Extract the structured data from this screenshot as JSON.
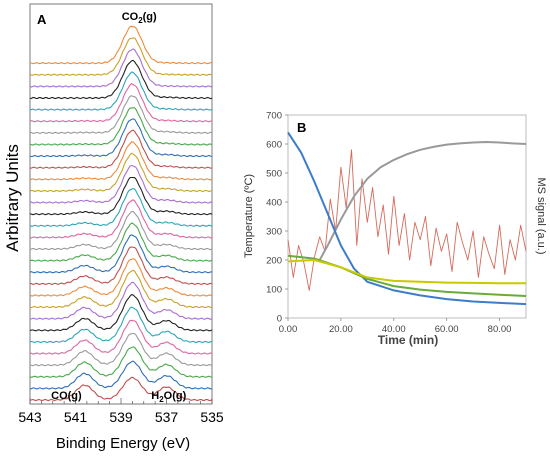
{
  "chart_data": [
    {
      "type": "line",
      "panel_label": "A",
      "xlabel": "Binding Energy (eV)",
      "ylabel": "Arbitrary Units",
      "xlim": [
        543,
        535
      ],
      "x_reversed": true,
      "x_ticks": [
        543,
        541,
        539,
        537,
        535
      ],
      "y_ticks": [],
      "grid": false,
      "annotations": [
        {
          "text": "CO",
          "sub": "2",
          "tail": "(g)",
          "x": 538.2
        },
        {
          "text": "CO(g)",
          "sub": "",
          "tail": "",
          "x": 541.4
        },
        {
          "text": "H",
          "sub": "2",
          "tail": "O(g)",
          "x": 536.9
        }
      ],
      "peak_positions_eV": {
        "CO(g)": 540.6,
        "CO2(g)": 538.5,
        "H2O(g)": 537.0
      },
      "spectra_count": 30,
      "series_colors": [
        "#c0504d",
        "#2f6fb5",
        "#4aa84a",
        "#9a9a9a",
        "#e066a0",
        "#2aa6b8",
        "#222222",
        "#a86fcf",
        "#c9a227",
        "#ee8a3a"
      ],
      "series": [
        {
          "index": 1,
          "CO": 0.4,
          "CO2": 0.6,
          "H2O": 0.35
        },
        {
          "index": 2,
          "CO": 0.4,
          "CO2": 0.72,
          "H2O": 0.34
        },
        {
          "index": 3,
          "CO": 0.39,
          "CO2": 0.8,
          "H2O": 0.33
        },
        {
          "index": 4,
          "CO": 0.38,
          "CO2": 0.86,
          "H2O": 0.32
        },
        {
          "index": 5,
          "CO": 0.36,
          "CO2": 0.9,
          "H2O": 0.3
        },
        {
          "index": 6,
          "CO": 0.34,
          "CO2": 0.93,
          "H2O": 0.28
        },
        {
          "index": 7,
          "CO": 0.32,
          "CO2": 0.95,
          "H2O": 0.26
        },
        {
          "index": 8,
          "CO": 0.3,
          "CO2": 0.97,
          "H2O": 0.24
        },
        {
          "index": 9,
          "CO": 0.27,
          "CO2": 0.98,
          "H2O": 0.22
        },
        {
          "index": 10,
          "CO": 0.24,
          "CO2": 0.99,
          "H2O": 0.2
        },
        {
          "index": 11,
          "CO": 0.21,
          "CO2": 1.0,
          "H2O": 0.18
        },
        {
          "index": 12,
          "CO": 0.18,
          "CO2": 1.0,
          "H2O": 0.16
        },
        {
          "index": 13,
          "CO": 0.15,
          "CO2": 1.0,
          "H2O": 0.14
        },
        {
          "index": 14,
          "CO": 0.12,
          "CO2": 1.0,
          "H2O": 0.12
        },
        {
          "index": 15,
          "CO": 0.1,
          "CO2": 1.0,
          "H2O": 0.1
        },
        {
          "index": 16,
          "CO": 0.08,
          "CO2": 1.0,
          "H2O": 0.09
        },
        {
          "index": 17,
          "CO": 0.06,
          "CO2": 1.0,
          "H2O": 0.08
        },
        {
          "index": 18,
          "CO": 0.05,
          "CO2": 1.0,
          "H2O": 0.07
        },
        {
          "index": 19,
          "CO": 0.04,
          "CO2": 1.0,
          "H2O": 0.06
        },
        {
          "index": 20,
          "CO": 0.03,
          "CO2": 1.0,
          "H2O": 0.05
        },
        {
          "index": 21,
          "CO": 0.02,
          "CO2": 1.0,
          "H2O": 0.04
        },
        {
          "index": 22,
          "CO": 0.02,
          "CO2": 1.0,
          "H2O": 0.04
        },
        {
          "index": 23,
          "CO": 0.01,
          "CO2": 1.0,
          "H2O": 0.03
        },
        {
          "index": 24,
          "CO": 0.01,
          "CO2": 1.0,
          "H2O": 0.03
        },
        {
          "index": 25,
          "CO": 0.01,
          "CO2": 1.0,
          "H2O": 0.02
        },
        {
          "index": 26,
          "CO": 0.0,
          "CO2": 1.0,
          "H2O": 0.02
        },
        {
          "index": 27,
          "CO": 0.0,
          "CO2": 1.0,
          "H2O": 0.02
        },
        {
          "index": 28,
          "CO": 0.0,
          "CO2": 1.0,
          "H2O": 0.01
        },
        {
          "index": 29,
          "CO": 0.0,
          "CO2": 1.0,
          "H2O": 0.01
        },
        {
          "index": 30,
          "CO": 0.0,
          "CO2": 1.0,
          "H2O": 0.01
        }
      ]
    },
    {
      "type": "line",
      "panel_label": "B",
      "xlabel": "Time (min)",
      "ylabel": "Temperature (ºC)",
      "y2label": "MS signal (a.u.)",
      "xlim": [
        0,
        90
      ],
      "ylim": [
        0,
        700
      ],
      "x_ticks": [
        "0.00",
        "20.00",
        "40.00",
        "60.00",
        "80.00"
      ],
      "y_ticks": [
        0,
        100,
        200,
        300,
        400,
        500,
        600,
        700
      ],
      "grid": false,
      "series": [
        {
          "color": "#3d7cc9",
          "x": [
            0,
            5,
            10,
            15,
            20,
            25,
            30,
            40,
            50,
            60,
            70,
            80,
            90
          ],
          "y": [
            640,
            570,
            470,
            360,
            250,
            170,
            125,
            95,
            78,
            65,
            57,
            52,
            48
          ]
        },
        {
          "color": "#999999",
          "x": [
            12,
            15,
            20,
            25,
            30,
            35,
            40,
            45,
            50,
            55,
            60,
            65,
            70,
            75,
            80,
            85,
            90
          ],
          "y": [
            200,
            250,
            340,
            420,
            480,
            520,
            545,
            565,
            580,
            590,
            598,
            602,
            605,
            607,
            605,
            602,
            600
          ]
        },
        {
          "color": "#c9c900",
          "x": [
            0,
            10,
            20,
            30,
            40,
            50,
            60,
            70,
            80,
            90
          ],
          "y": [
            195,
            200,
            175,
            140,
            128,
            125,
            122,
            121,
            120,
            120
          ]
        },
        {
          "color": "#6aaa3a",
          "x": [
            0,
            10,
            20,
            30,
            40,
            50,
            60,
            70,
            80,
            90
          ],
          "y": [
            215,
            205,
            175,
            135,
            110,
            98,
            90,
            85,
            80,
            76
          ]
        },
        {
          "color": "#d66a5a",
          "x": [
            0,
            2,
            4,
            6,
            8,
            10,
            12,
            14,
            16,
            18,
            20,
            22,
            24,
            26,
            28,
            30,
            32,
            34,
            36,
            38,
            40,
            42,
            44,
            46,
            48,
            50,
            52,
            54,
            56,
            58,
            60,
            62,
            64,
            66,
            68,
            70,
            72,
            74,
            76,
            78,
            80,
            82,
            84,
            86,
            88,
            90
          ],
          "y": [
            270,
            140,
            250,
            190,
            95,
            210,
            280,
            230,
            410,
            300,
            520,
            380,
            580,
            250,
            480,
            330,
            450,
            280,
            390,
            220,
            420,
            250,
            360,
            200,
            330,
            270,
            350,
            180,
            310,
            230,
            290,
            160,
            330,
            260,
            200,
            300,
            140,
            280,
            220,
            170,
            320,
            150,
            270,
            200,
            320,
            230
          ]
        }
      ]
    }
  ]
}
